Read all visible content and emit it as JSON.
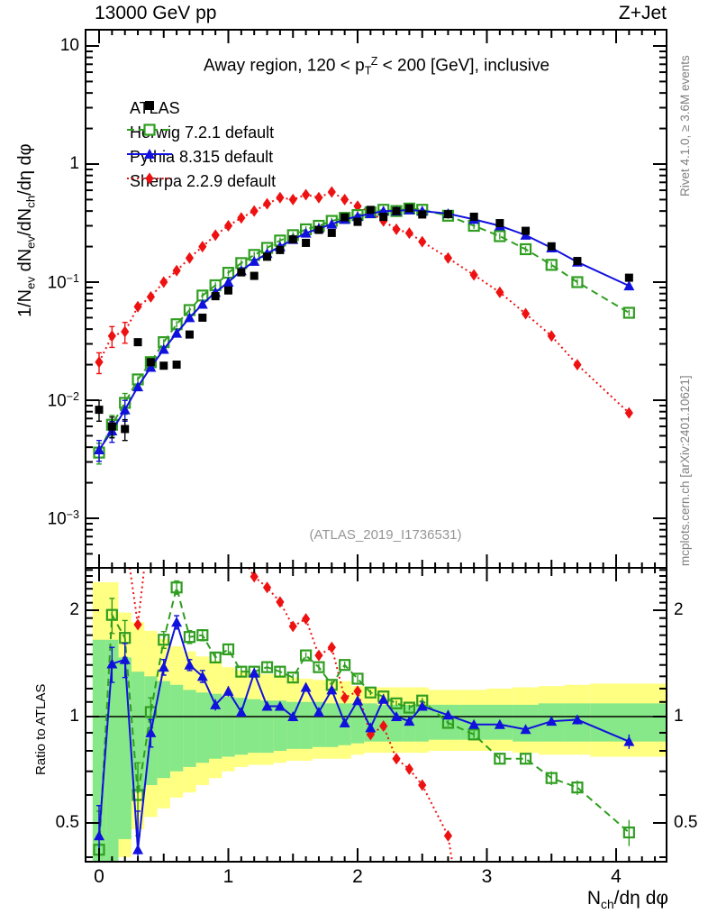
{
  "titles": {
    "top_left": "13000 GeV pp",
    "top_right": "Z+Jet",
    "heading": "Away region, 120 < p_[T]^[Z] < 200 [GeV], inclusive",
    "watermark": "(ATLAS_2019_I1736531)",
    "side_top": "Rivet 4.1.0, ≥ 3.6M events",
    "side_bottom": "mcplots.cern.ch [arXiv:2401.10621]",
    "y_axis_main": "1/N_[ev] dN_[ev]/dN_[ch]/dη dφ",
    "y_axis_ratio": "Ratio to ATLAS",
    "x_axis": "N_[ch]/dη dφ"
  },
  "chart_data": {
    "type": "line",
    "x_range": [
      -0.1,
      4.39
    ],
    "y_range_main": [
      0.00038,
      13.7
    ],
    "y_range_ratio": [
      0.39,
      2.64
    ],
    "x_ticks": [
      0,
      1,
      2,
      3,
      4
    ],
    "x_tick_labels": [
      "0",
      "1",
      "2",
      "3",
      "4"
    ],
    "y_ticks_main": [
      {
        "v": 10,
        "label": "10"
      },
      {
        "v": 1,
        "label": "1"
      },
      {
        "v": 0.1,
        "label": "10^[−1]"
      },
      {
        "v": 0.01,
        "label": "10^[−2]"
      },
      {
        "v": 0.001,
        "label": "10^[−3]"
      }
    ],
    "y_ticks_ratio": [
      {
        "v": 2,
        "label": "2"
      },
      {
        "v": 1,
        "label": "1"
      },
      {
        "v": 0.5,
        "label": "0.5"
      }
    ],
    "x": [
      0,
      0.1,
      0.2,
      0.3,
      0.4,
      0.5,
      0.6,
      0.7,
      0.8,
      0.9,
      1,
      1.1,
      1.2,
      1.3,
      1.4,
      1.5,
      1.6,
      1.7,
      1.8,
      1.9,
      2,
      2.1,
      2.2,
      2.3,
      2.4,
      2.5,
      2.7,
      2.9,
      3.1,
      3.3,
      3.5,
      3.7,
      4.1
    ],
    "series_main": [
      {
        "name": "ATLAS",
        "color": "#000000",
        "marker": "square",
        "line": "none",
        "values": [
          0.0083,
          0.006,
          0.0057,
          0.031,
          0.021,
          0.0196,
          0.02,
          0.036,
          0.05,
          0.076,
          0.085,
          0.121,
          0.113,
          0.164,
          0.187,
          0.23,
          0.215,
          0.277,
          0.261,
          0.354,
          0.324,
          0.409,
          0.357,
          0.4,
          0.423,
          0.374,
          0.376,
          0.358,
          0.316,
          0.272,
          0.201,
          0.151,
          0.109
        ]
      },
      {
        "name": "Herwig 7.2.1 default",
        "color": "#2f9e20",
        "marker": "open-square",
        "line": "dashed",
        "values": [
          0.0036,
          0.0062,
          0.0095,
          0.015,
          0.021,
          0.031,
          0.044,
          0.058,
          0.077,
          0.094,
          0.12,
          0.145,
          0.17,
          0.195,
          0.225,
          0.25,
          0.28,
          0.3,
          0.33,
          0.35,
          0.37,
          0.39,
          0.41,
          0.4,
          0.42,
          0.41,
          0.365,
          0.3,
          0.245,
          0.19,
          0.14,
          0.1,
          0.055
        ]
      },
      {
        "name": "Pythia 8.315 default",
        "color": "#1111dd",
        "marker": "triangle",
        "line": "solid",
        "values": [
          0.0038,
          0.0055,
          0.0083,
          0.013,
          0.019,
          0.027,
          0.037,
          0.05,
          0.065,
          0.082,
          0.1,
          0.125,
          0.15,
          0.175,
          0.2,
          0.23,
          0.26,
          0.285,
          0.31,
          0.34,
          0.36,
          0.38,
          0.4,
          0.4,
          0.41,
          0.4,
          0.38,
          0.34,
          0.3,
          0.25,
          0.195,
          0.148,
          0.093
        ]
      },
      {
        "name": "Sherpa 2.2.9 default",
        "color": "#ee1111",
        "marker": "diamond",
        "line": "dotted",
        "values": [
          0.021,
          0.035,
          0.038,
          0.062,
          0.075,
          0.1,
          0.125,
          0.16,
          0.2,
          0.25,
          0.3,
          0.35,
          0.4,
          0.46,
          0.52,
          0.5,
          0.55,
          0.52,
          0.58,
          0.5,
          0.44,
          0.39,
          0.33,
          0.28,
          0.26,
          0.22,
          0.16,
          0.115,
          0.082,
          0.054,
          0.035,
          0.02,
          0.0078
        ]
      }
    ],
    "ratio": {
      "band_colors": {
        "yellow": "#ffff82",
        "green": "#86e888"
      },
      "yellow_band": [
        [
          0.39,
          2.4
        ],
        [
          0.39,
          2.4
        ],
        [
          0.4,
          1.97
        ],
        [
          0.48,
          1.85
        ],
        [
          0.52,
          1.75
        ],
        [
          0.55,
          1.66
        ],
        [
          0.59,
          1.58
        ],
        [
          0.61,
          1.53
        ],
        [
          0.64,
          1.48
        ],
        [
          0.67,
          1.44
        ],
        [
          0.7,
          1.38
        ],
        [
          0.72,
          1.35
        ],
        [
          0.73,
          1.33
        ],
        [
          0.73,
          1.32
        ],
        [
          0.74,
          1.31
        ],
        [
          0.75,
          1.29
        ],
        [
          0.75,
          1.28
        ],
        [
          0.76,
          1.27
        ],
        [
          0.76,
          1.26
        ],
        [
          0.76,
          1.26
        ],
        [
          0.78,
          1.22
        ],
        [
          0.79,
          1.21
        ],
        [
          0.79,
          1.21
        ],
        [
          0.79,
          1.21
        ],
        [
          0.79,
          1.21
        ],
        [
          0.79,
          1.21
        ],
        [
          0.8,
          1.19
        ],
        [
          0.8,
          1.19
        ],
        [
          0.8,
          1.2
        ],
        [
          0.79,
          1.21
        ],
        [
          0.78,
          1.22
        ],
        [
          0.78,
          1.23
        ],
        [
          0.77,
          1.24
        ]
      ],
      "green_band": [
        [
          0.39,
          1.65
        ],
        [
          0.39,
          1.65
        ],
        [
          0.45,
          1.47
        ],
        [
          0.61,
          1.34
        ],
        [
          0.64,
          1.3
        ],
        [
          0.67,
          1.26
        ],
        [
          0.7,
          1.23
        ],
        [
          0.72,
          1.19
        ],
        [
          0.74,
          1.17
        ],
        [
          0.76,
          1.16
        ],
        [
          0.77,
          1.14
        ],
        [
          0.78,
          1.13
        ],
        [
          0.79,
          1.12
        ],
        [
          0.79,
          1.11
        ],
        [
          0.8,
          1.11
        ],
        [
          0.81,
          1.1
        ],
        [
          0.81,
          1.1
        ],
        [
          0.82,
          1.1
        ],
        [
          0.82,
          1.09
        ],
        [
          0.83,
          1.09
        ],
        [
          0.84,
          1.09
        ],
        [
          0.85,
          1.09
        ],
        [
          0.85,
          1.08
        ],
        [
          0.85,
          1.08
        ],
        [
          0.85,
          1.08
        ],
        [
          0.85,
          1.08
        ],
        [
          0.86,
          1.08
        ],
        [
          0.86,
          1.08
        ],
        [
          0.86,
          1.08
        ],
        [
          0.85,
          1.08
        ],
        [
          0.85,
          1.09
        ],
        [
          0.85,
          1.09
        ],
        [
          0.85,
          1.09
        ]
      ],
      "herwig": {
        "values": [
          0.42,
          1.94,
          1.67,
          0.6,
          1.03,
          1.65,
          2.32,
          1.68,
          1.7,
          1.47,
          1.55,
          1.34,
          1.34,
          1.38,
          1.34,
          1.29,
          1.49,
          1.38,
          1.23,
          1.4,
          1.28,
          1.17,
          1.14,
          1.09,
          1.06,
          1.11,
          0.96,
          0.89,
          0.76,
          0.76,
          0.67,
          0.63,
          0.47
        ],
        "err": [
          0.12,
          0.22,
          0.2,
          0.14,
          0.1,
          0.09,
          0.1,
          0.07,
          0.06,
          0.05,
          0.05,
          0.04,
          0.04,
          0.04,
          0.04,
          0.03,
          0.03,
          0.03,
          0.03,
          0.03,
          0.03,
          0.02,
          0.02,
          0.02,
          0.02,
          0.02,
          0.02,
          0.02,
          0.02,
          0.02,
          0.03,
          0.03,
          0.04
        ]
      },
      "pythia": {
        "values": [
          0.46,
          1.41,
          1.45,
          0.42,
          0.9,
          1.38,
          1.85,
          1.4,
          1.3,
          1.08,
          1.18,
          1.03,
          1.33,
          1.07,
          1.07,
          1.0,
          1.21,
          1.03,
          1.19,
          0.96,
          1.11,
          0.93,
          1.12,
          1.0,
          0.97,
          1.07,
          1.01,
          0.95,
          0.95,
          0.92,
          0.97,
          0.98,
          0.85
        ],
        "err": [
          0.1,
          0.16,
          0.16,
          0.12,
          0.08,
          0.07,
          0.08,
          0.05,
          0.05,
          0.04,
          0.04,
          0.03,
          0.04,
          0.03,
          0.03,
          0.03,
          0.03,
          0.02,
          0.03,
          0.02,
          0.02,
          0.02,
          0.02,
          0.02,
          0.02,
          0.02,
          0.02,
          0.02,
          0.02,
          0.02,
          0.02,
          0.03,
          0.04
        ]
      },
      "sherpa_points": [
        [
          0.2,
          3.3
        ],
        [
          0.3,
          1.82
        ],
        [
          0.38,
          3.3
        ],
        [
          1.13,
          2.75
        ],
        [
          1.2,
          2.49
        ],
        [
          1.3,
          2.32
        ],
        [
          1.4,
          2.11
        ],
        [
          1.5,
          1.8
        ],
        [
          1.6,
          1.89
        ],
        [
          1.7,
          1.49
        ],
        [
          1.8,
          1.57
        ],
        [
          1.9,
          1.13
        ],
        [
          2.0,
          1.18
        ],
        [
          2.1,
          0.89
        ],
        [
          2.2,
          0.94
        ],
        [
          2.3,
          0.76
        ],
        [
          2.4,
          0.71
        ],
        [
          2.5,
          0.64
        ],
        [
          2.7,
          0.46
        ],
        [
          2.78,
          0.3
        ]
      ]
    }
  }
}
